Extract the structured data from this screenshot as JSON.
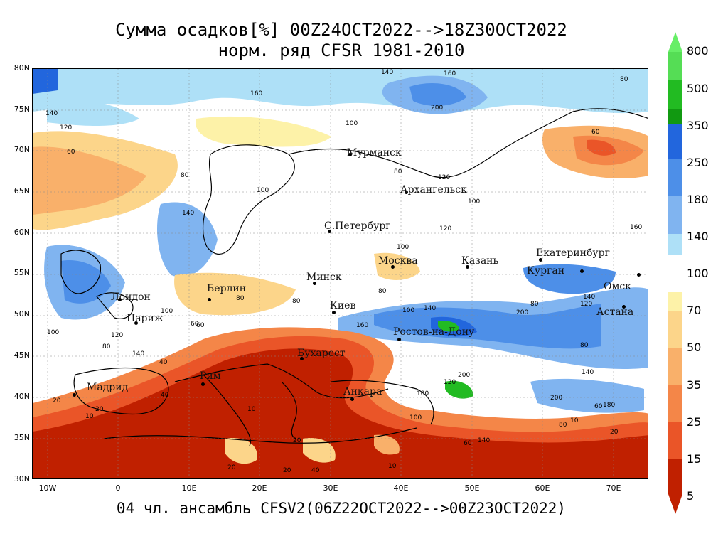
{
  "title": {
    "line1": "Сумма осадков[%] 00Z24OCT2022-->18Z30OCT2022",
    "line2": "норм. ряд CFSR 1981-2010"
  },
  "footer": "04 чл. ансамбль CFSV2(06Z22OCT2022-->00Z23OCT2022)",
  "axes": {
    "lat_labels": [
      "80N",
      "75N",
      "70N",
      "65N",
      "60N",
      "55N",
      "50N",
      "45N",
      "40N",
      "35N",
      "30N"
    ],
    "lon_labels": [
      "10W",
      "0",
      "10E",
      "20E",
      "30E",
      "40E",
      "50E",
      "60E",
      "70E"
    ]
  },
  "colorbar": {
    "labels": [
      "800",
      "500",
      "350",
      "250",
      "180",
      "140",
      "100",
      "70",
      "50",
      "35",
      "25",
      "15",
      "5"
    ],
    "colors": {
      "c800": "#55dd55",
      "c500": "#22bb22",
      "c350": "#119911",
      "c250": "#2266dd",
      "c180": "#4d8fe8",
      "c140": "#80b4f0",
      "c100": "#aee0f7",
      "cwhite": "#ffffff",
      "c70": "#fdf2a8",
      "c50": "#fcd58a",
      "c35": "#f9b06a",
      "c25": "#f48648",
      "c15": "#ea5528",
      "c5": "#c02000"
    }
  },
  "cities": [
    {
      "name": "Мурманск",
      "id": "murmansk"
    },
    {
      "name": "Архангельск",
      "id": "arkhangelsk"
    },
    {
      "name": "С.Петербург",
      "id": "spb"
    },
    {
      "name": "Москва",
      "id": "moskva"
    },
    {
      "name": "Казань",
      "id": "kazan"
    },
    {
      "name": "Екатеринбург",
      "id": "ekb"
    },
    {
      "name": "Курган",
      "id": "kurgan"
    },
    {
      "name": "Омск",
      "id": "omsk"
    },
    {
      "name": "Астана",
      "id": "astana"
    },
    {
      "name": "Минск",
      "id": "minsk"
    },
    {
      "name": "Берлин",
      "id": "berlin"
    },
    {
      "name": "Лондон",
      "id": "london"
    },
    {
      "name": "Париж",
      "id": "paris"
    },
    {
      "name": "Киев",
      "id": "kiev"
    },
    {
      "name": "Ростов-на-Дону",
      "id": "rostov"
    },
    {
      "name": "Бухарест",
      "id": "bucharest"
    },
    {
      "name": "Рим",
      "id": "rim"
    },
    {
      "name": "Мадрид",
      "id": "madrid"
    },
    {
      "name": "Анкара",
      "id": "ankara"
    }
  ],
  "contour_labels": [
    "140",
    "160",
    "200",
    "140",
    "160",
    "120",
    "100",
    "80",
    "60",
    "80",
    "100",
    "120",
    "140",
    "160",
    "80",
    "100",
    "60",
    "120",
    "100",
    "80",
    "140",
    "200",
    "80",
    "100",
    "160",
    "120",
    "140",
    "100",
    "80",
    "60",
    "40",
    "80",
    "100",
    "140",
    "120",
    "60",
    "80",
    "100",
    "140",
    "80",
    "60",
    "20",
    "10",
    "20",
    "10",
    "20",
    "10",
    "20",
    "40",
    "60",
    "140",
    "200",
    "200",
    "100",
    "80",
    "120",
    "180",
    "20",
    "10",
    "20",
    "40"
  ]
}
